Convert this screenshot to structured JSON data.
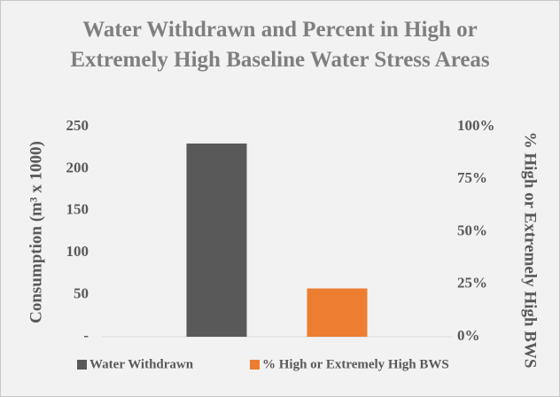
{
  "chart_data": {
    "type": "bar",
    "title": "Water Withdrawn and Percent in High or Extremely High Baseline Water Stress Areas",
    "y_label": "Consumption (m³ x 1000)",
    "y2_label": "% High or Extremely High BWS",
    "categories": [
      null
    ],
    "series": [
      {
        "name": "Water Withdrawn",
        "color": "#595959",
        "values": [
          230
        ]
      },
      {
        "name": "% High or Extremely High BWS",
        "color": "#ed7d31",
        "values": [
          23
        ],
        "axis": "y2"
      }
    ],
    "ylim": [
      0,
      250
    ],
    "yticks": [
      {
        "value": 0,
        "label": "-"
      },
      50,
      100,
      150,
      200,
      250
    ],
    "y2lim": [
      0,
      100
    ],
    "y2ticks": [
      {
        "value": 0,
        "label": "0%"
      },
      {
        "value": 25,
        "label": "25%"
      },
      {
        "value": 50,
        "label": "50%"
      },
      {
        "value": 75,
        "label": "75%"
      },
      {
        "value": 100,
        "label": "100%"
      }
    ],
    "legend": "bottom"
  }
}
